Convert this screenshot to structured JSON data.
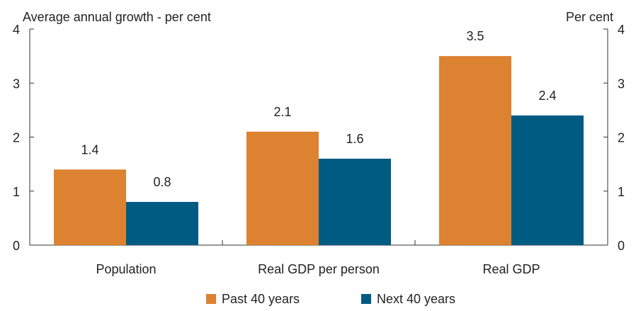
{
  "chart_data": {
    "type": "bar",
    "title": "",
    "left_axis_label": "Average annual growth - per cent",
    "right_axis_label": "Per cent",
    "categories": [
      "Population",
      "Real GDP per person",
      "Real GDP"
    ],
    "series": [
      {
        "name": "Past 40 years",
        "values": [
          1.4,
          2.1,
          3.5
        ],
        "color": "#dd8230"
      },
      {
        "name": "Next 40 years",
        "values": [
          0.8,
          1.6,
          2.4
        ],
        "color": "#005b82"
      }
    ],
    "data_labels": [
      [
        "1.4",
        "2.1",
        "3.5"
      ],
      [
        "0.8",
        "1.6",
        "2.4"
      ]
    ],
    "ylim": [
      0,
      4
    ],
    "yticks": [
      0,
      1,
      2,
      3,
      4
    ],
    "ytick_labels": [
      "0",
      "1",
      "2",
      "3",
      "4"
    ],
    "grid": false,
    "legend_position": "bottom"
  }
}
